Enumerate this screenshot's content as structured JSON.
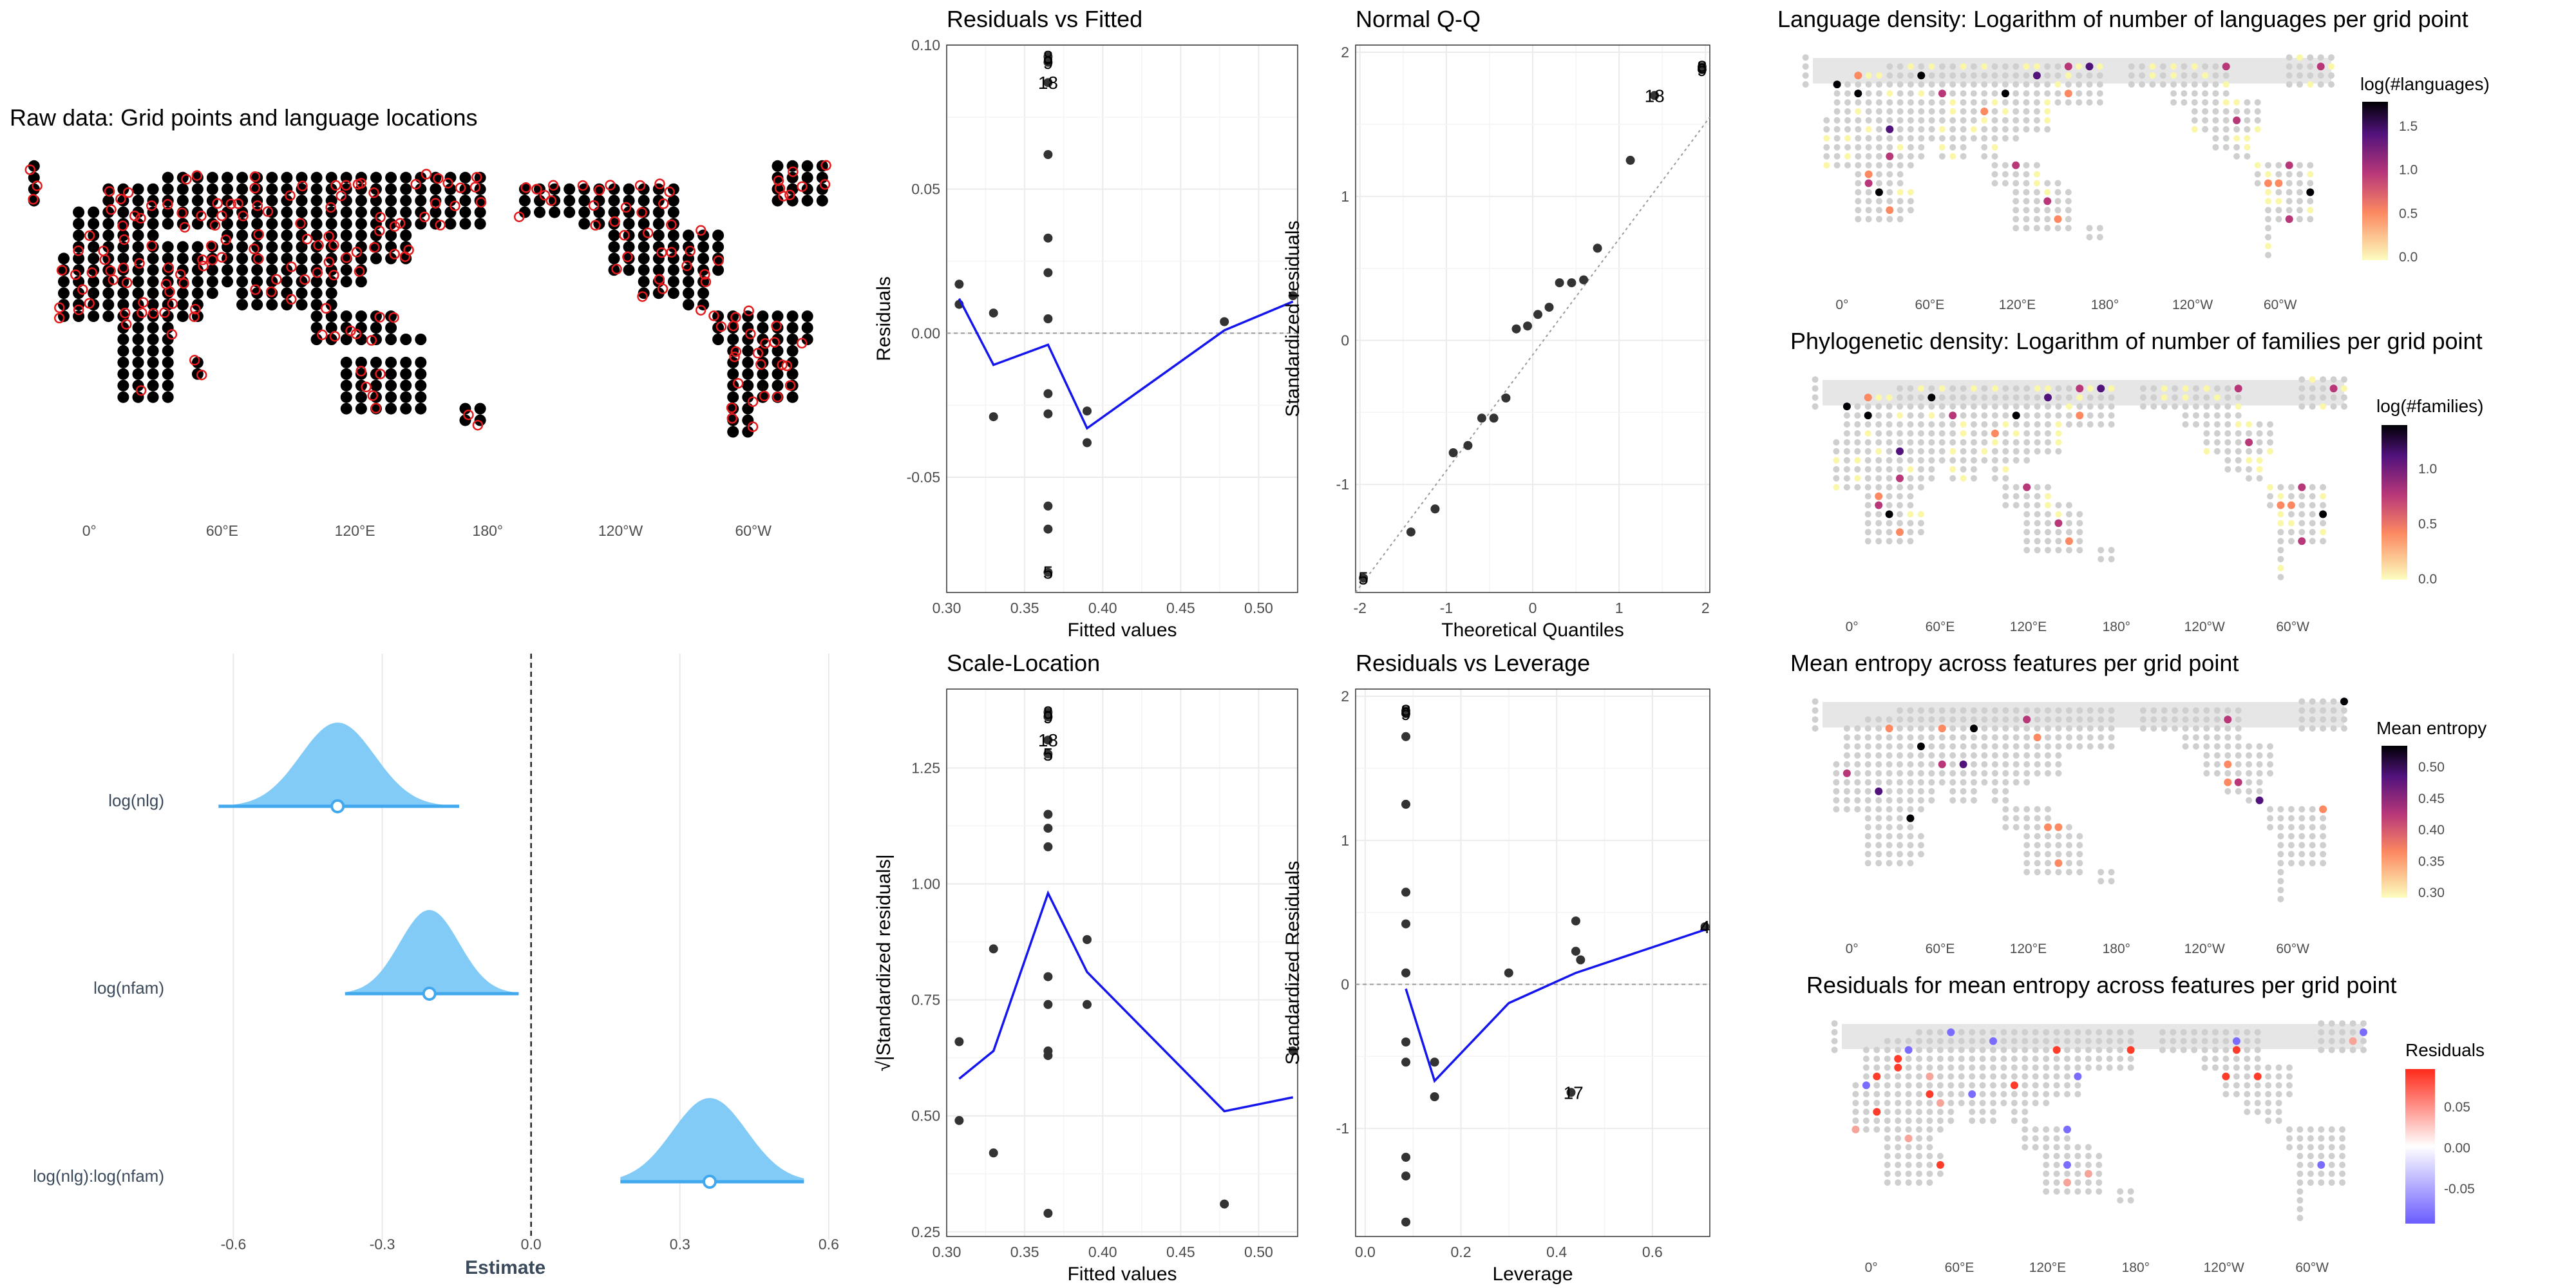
{
  "map_panels": {
    "raw": {
      "title": "Raw data: Grid points and language locations",
      "lon_labels": [
        "0°",
        "60°E",
        "120°E",
        "180°",
        "120°W",
        "60°W"
      ]
    },
    "lang_density": {
      "title": "Language density: Logarithm of number of languages per grid point",
      "legend_title": "log(#languages)",
      "legend_ticks": [
        "1.5",
        "1.0",
        "0.5",
        "0.0"
      ],
      "lon_labels": [
        "0°",
        "60°E",
        "120°E",
        "180°",
        "120°W",
        "60°W"
      ],
      "colors": [
        "#fcfdbf",
        "#fc8961",
        "#b73779",
        "#51127c",
        "#000004"
      ]
    },
    "phylo_density": {
      "title": "Phylogenetic density: Logarithm of number of families per grid point",
      "legend_title": "log(#families)",
      "legend_ticks": [
        "1.0",
        "0.5",
        "0.0"
      ],
      "lon_labels": [
        "0°",
        "60°E",
        "120°E",
        "180°",
        "120°W",
        "60°W"
      ],
      "colors": [
        "#fcfdbf",
        "#fc8961",
        "#b73779",
        "#51127c",
        "#000004"
      ]
    },
    "entropy": {
      "title": "Mean entropy across features per grid point",
      "legend_title": "Mean entropy",
      "legend_ticks": [
        "0.50",
        "0.45",
        "0.40",
        "0.35",
        "0.30"
      ],
      "lon_labels": [
        "0°",
        "60°E",
        "120°E",
        "180°",
        "120°W",
        "60°W"
      ],
      "colors": [
        "#fcfdbf",
        "#fc8961",
        "#b73779",
        "#51127c",
        "#000004"
      ]
    },
    "residuals": {
      "title": "Residuals for mean entropy across features per grid point",
      "legend_title": "Residuals",
      "legend_ticks": [
        "0.05",
        "0.00",
        "-0.05"
      ],
      "lon_labels": [
        "0°",
        "60°E",
        "120°E",
        "180°",
        "120°W",
        "60°W"
      ],
      "colors": [
        "#ff2a1a",
        "#ffffff",
        "#6a5cff"
      ]
    }
  },
  "chart_data": [
    {
      "type": "scatter",
      "title": "Residuals vs Fitted",
      "xlabel": "Fitted values",
      "ylabel": "Residuals",
      "xlim": [
        0.3,
        0.525
      ],
      "ylim": [
        -0.09,
        0.1
      ],
      "xticks": [
        0.3,
        0.35,
        0.4,
        0.45,
        0.5
      ],
      "xtick_labels": [
        "0.30",
        "0.35",
        "0.40",
        "0.45",
        "0.50"
      ],
      "yticks": [
        -0.05,
        0.0,
        0.05,
        0.1
      ],
      "ytick_labels": [
        "-0.05",
        "0.00",
        "0.05",
        "0.10"
      ],
      "hline": 0,
      "points": [
        [
          0.308,
          0.017
        ],
        [
          0.308,
          0.01
        ],
        [
          0.33,
          0.007
        ],
        [
          0.33,
          -0.029
        ],
        [
          0.365,
          0.096
        ],
        [
          0.365,
          0.094
        ],
        [
          0.365,
          0.087
        ],
        [
          0.365,
          0.062
        ],
        [
          0.365,
          0.033
        ],
        [
          0.365,
          0.021
        ],
        [
          0.365,
          0.005
        ],
        [
          0.365,
          -0.021
        ],
        [
          0.365,
          -0.028
        ],
        [
          0.365,
          -0.06
        ],
        [
          0.365,
          -0.068
        ],
        [
          0.365,
          -0.083
        ],
        [
          0.39,
          -0.027
        ],
        [
          0.39,
          -0.038
        ],
        [
          0.478,
          0.004
        ],
        [
          0.522,
          0.013
        ]
      ],
      "smooth": [
        [
          0.308,
          0.012
        ],
        [
          0.33,
          -0.011
        ],
        [
          0.365,
          -0.004
        ],
        [
          0.39,
          -0.033
        ],
        [
          0.478,
          0.001
        ],
        [
          0.522,
          0.011
        ]
      ],
      "point_labels": [
        {
          "x": 0.365,
          "y": 0.096,
          "text": "8"
        },
        {
          "x": 0.365,
          "y": 0.094,
          "text": "9"
        },
        {
          "x": 0.365,
          "y": 0.087,
          "text": "18"
        },
        {
          "x": 0.365,
          "y": -0.083,
          "text": "5"
        }
      ]
    },
    {
      "type": "scatter",
      "title": "Normal Q-Q",
      "xlabel": "Theoretical Quantiles",
      "ylabel": "Standardized residuals",
      "xlim": [
        -2.05,
        2.05
      ],
      "ylim": [
        -1.75,
        2.05
      ],
      "xticks": [
        -2,
        -1,
        0,
        1,
        2
      ],
      "xtick_labels": [
        "-2",
        "-1",
        "0",
        "1",
        "2"
      ],
      "yticks": [
        -1,
        0,
        1,
        2
      ],
      "ytick_labels": [
        "-1",
        "0",
        "1",
        "2"
      ],
      "points": [
        [
          -1.96,
          -1.65
        ],
        [
          -1.41,
          -1.33
        ],
        [
          -1.13,
          -1.17
        ],
        [
          -0.92,
          -0.78
        ],
        [
          -0.75,
          -0.73
        ],
        [
          -0.59,
          -0.54
        ],
        [
          -0.45,
          -0.54
        ],
        [
          -0.31,
          -0.4
        ],
        [
          -0.19,
          0.08
        ],
        [
          -0.06,
          0.1
        ],
        [
          0.06,
          0.18
        ],
        [
          0.19,
          0.23
        ],
        [
          0.31,
          0.4
        ],
        [
          0.45,
          0.4
        ],
        [
          0.59,
          0.42
        ],
        [
          0.75,
          0.64
        ],
        [
          1.13,
          1.25
        ],
        [
          1.41,
          1.7
        ],
        [
          1.96,
          1.9
        ],
        [
          1.96,
          1.88
        ]
      ],
      "refline": [
        [
          -2.05,
          -1.75
        ],
        [
          2.05,
          1.55
        ]
      ],
      "point_labels": [
        {
          "x": 1.96,
          "y": 1.9,
          "text": "8"
        },
        {
          "x": 1.96,
          "y": 1.88,
          "text": "9"
        },
        {
          "x": 1.41,
          "y": 1.7,
          "text": "18"
        },
        {
          "x": -1.96,
          "y": -1.65,
          "text": "5"
        }
      ]
    },
    {
      "type": "scatter",
      "title": "Scale-Location",
      "xlabel": "Fitted values",
      "ylabel": "√|Standardized residuals|",
      "xlim": [
        0.3,
        0.525
      ],
      "ylim": [
        0.24,
        1.42
      ],
      "xticks": [
        0.3,
        0.35,
        0.4,
        0.45,
        0.5
      ],
      "xtick_labels": [
        "0.30",
        "0.35",
        "0.40",
        "0.45",
        "0.50"
      ],
      "yticks": [
        0.25,
        0.5,
        0.75,
        1.0,
        1.25
      ],
      "ytick_labels": [
        "0.25",
        "0.50",
        "0.75",
        "1.00",
        "1.25"
      ],
      "points": [
        [
          0.308,
          0.66
        ],
        [
          0.308,
          0.49
        ],
        [
          0.33,
          0.86
        ],
        [
          0.33,
          0.42
        ],
        [
          0.365,
          1.37
        ],
        [
          0.365,
          1.36
        ],
        [
          0.365,
          1.31
        ],
        [
          0.365,
          1.28
        ],
        [
          0.365,
          1.15
        ],
        [
          0.365,
          1.12
        ],
        [
          0.365,
          1.08
        ],
        [
          0.365,
          0.8
        ],
        [
          0.365,
          0.74
        ],
        [
          0.365,
          0.64
        ],
        [
          0.365,
          0.63
        ],
        [
          0.365,
          0.29
        ],
        [
          0.39,
          0.88
        ],
        [
          0.39,
          0.74
        ],
        [
          0.478,
          0.31
        ],
        [
          0.522,
          0.64
        ]
      ],
      "smooth": [
        [
          0.308,
          0.58
        ],
        [
          0.33,
          0.64
        ],
        [
          0.365,
          0.98
        ],
        [
          0.39,
          0.81
        ],
        [
          0.478,
          0.51
        ],
        [
          0.522,
          0.54
        ]
      ],
      "point_labels": [
        {
          "x": 0.365,
          "y": 1.37,
          "text": "8"
        },
        {
          "x": 0.365,
          "y": 1.36,
          "text": "9"
        },
        {
          "x": 0.365,
          "y": 1.31,
          "text": "18"
        },
        {
          "x": 0.365,
          "y": 1.28,
          "text": "5"
        }
      ]
    },
    {
      "type": "scatter",
      "title": "Residuals vs Leverage",
      "xlabel": "Leverage",
      "ylabel": "Standardized Residuals",
      "xlim": [
        -0.02,
        0.72
      ],
      "ylim": [
        -1.75,
        2.05
      ],
      "xticks": [
        0.0,
        0.2,
        0.4,
        0.6
      ],
      "xtick_labels": [
        "0.0",
        "0.2",
        "0.4",
        "0.6"
      ],
      "yticks": [
        -1,
        0,
        1,
        2
      ],
      "ytick_labels": [
        "-1",
        "0",
        "1",
        "2"
      ],
      "hline": 0,
      "points": [
        [
          0.085,
          1.9
        ],
        [
          0.085,
          1.88
        ],
        [
          0.085,
          1.72
        ],
        [
          0.085,
          1.25
        ],
        [
          0.085,
          0.64
        ],
        [
          0.085,
          0.42
        ],
        [
          0.085,
          0.08
        ],
        [
          0.085,
          -0.4
        ],
        [
          0.085,
          -0.54
        ],
        [
          0.085,
          -1.2
        ],
        [
          0.085,
          -1.33
        ],
        [
          0.085,
          -1.65
        ],
        [
          0.145,
          -0.54
        ],
        [
          0.145,
          -0.78
        ],
        [
          0.3,
          0.08
        ],
        [
          0.44,
          0.44
        ],
        [
          0.44,
          0.23
        ],
        [
          0.45,
          0.17
        ],
        [
          0.71,
          0.4
        ],
        [
          0.43,
          -0.75
        ]
      ],
      "smooth": [
        [
          0.085,
          -0.03
        ],
        [
          0.145,
          -0.67
        ],
        [
          0.3,
          -0.13
        ],
        [
          0.44,
          0.08
        ],
        [
          0.71,
          0.38
        ]
      ],
      "point_labels": [
        {
          "x": 0.085,
          "y": 1.9,
          "text": "8"
        },
        {
          "x": 0.085,
          "y": 1.88,
          "text": "9"
        },
        {
          "x": 0.71,
          "y": 0.4,
          "text": "4"
        },
        {
          "x": 0.435,
          "y": -0.75,
          "text": "17"
        }
      ]
    },
    {
      "type": "density",
      "xlabel": "Estimate",
      "xlim": [
        -0.72,
        0.63
      ],
      "xticks": [
        -0.6,
        -0.3,
        0.0,
        0.3,
        0.6
      ],
      "xtick_labels": [
        "-0.6",
        "-0.3",
        "0.0",
        "0.3",
        "0.6"
      ],
      "vline": 0,
      "series": [
        {
          "name": "log(nlg)",
          "mean": -0.39,
          "sd": 0.075,
          "lo": -0.63,
          "hi": -0.145
        },
        {
          "name": "log(nfam)",
          "mean": -0.205,
          "sd": 0.06,
          "lo": -0.375,
          "hi": -0.025
        },
        {
          "name": "log(nlg):log(nfam)",
          "mean": 0.36,
          "sd": 0.075,
          "lo": 0.18,
          "hi": 0.55
        }
      ],
      "fill": "#82cbf7",
      "line_color": "#42a8ee"
    }
  ]
}
